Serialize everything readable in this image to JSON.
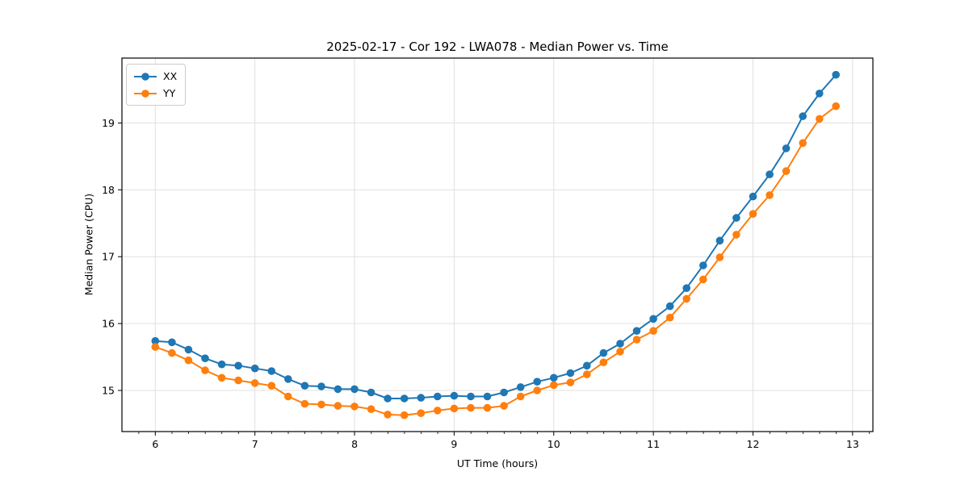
{
  "chart_data": {
    "type": "line",
    "title": "2025-02-17 - Cor 192 - LWA078 - Median Power vs. Time",
    "xlabel": "UT Time (hours)",
    "ylabel": "Median Power (CPU)",
    "xlim": [
      5.665,
      13.204
    ],
    "ylim": [
      14.385,
      19.97
    ],
    "xticks": [
      6,
      7,
      8,
      9,
      10,
      11,
      12,
      13
    ],
    "yticks": [
      15,
      16,
      17,
      18,
      19
    ],
    "x_minor_step": 0.1667,
    "grid": true,
    "grid_color": "#e0e0e0",
    "spine_color": "#000000",
    "text_color": "#000000",
    "legend_position": "upper-left",
    "x": [
      6.0,
      6.167,
      6.333,
      6.5,
      6.667,
      6.833,
      7.0,
      7.167,
      7.333,
      7.5,
      7.667,
      7.833,
      8.0,
      8.167,
      8.333,
      8.5,
      8.667,
      8.833,
      9.0,
      9.167,
      9.333,
      9.5,
      9.667,
      9.833,
      10.0,
      10.167,
      10.333,
      10.5,
      10.667,
      10.833,
      11.0,
      11.167,
      11.333,
      11.5,
      11.667,
      11.833,
      12.0,
      12.167,
      12.333,
      12.5,
      12.667,
      12.833
    ],
    "series": [
      {
        "name": "XX",
        "color": "#1f77b4",
        "values": [
          15.74,
          15.72,
          15.61,
          15.48,
          15.39,
          15.37,
          15.33,
          15.29,
          15.17,
          15.07,
          15.06,
          15.02,
          15.02,
          14.97,
          14.88,
          14.88,
          14.89,
          14.91,
          14.92,
          14.91,
          14.91,
          14.97,
          15.05,
          15.13,
          15.19,
          15.26,
          15.37,
          15.56,
          15.7,
          15.89,
          16.07,
          16.26,
          16.53,
          16.87,
          17.24,
          17.58,
          17.9,
          18.23,
          18.62,
          19.1,
          19.44,
          19.72
        ]
      },
      {
        "name": "YY",
        "color": "#ff7f0e",
        "values": [
          15.65,
          15.56,
          15.45,
          15.3,
          15.19,
          15.15,
          15.11,
          15.07,
          14.91,
          14.8,
          14.79,
          14.77,
          14.76,
          14.72,
          14.64,
          14.63,
          14.66,
          14.7,
          14.73,
          14.74,
          14.74,
          14.77,
          14.91,
          15.0,
          15.08,
          15.12,
          15.24,
          15.42,
          15.58,
          15.76,
          15.89,
          16.09,
          16.37,
          16.66,
          16.99,
          17.33,
          17.64,
          17.92,
          18.28,
          18.7,
          19.06,
          19.25
        ]
      }
    ]
  }
}
